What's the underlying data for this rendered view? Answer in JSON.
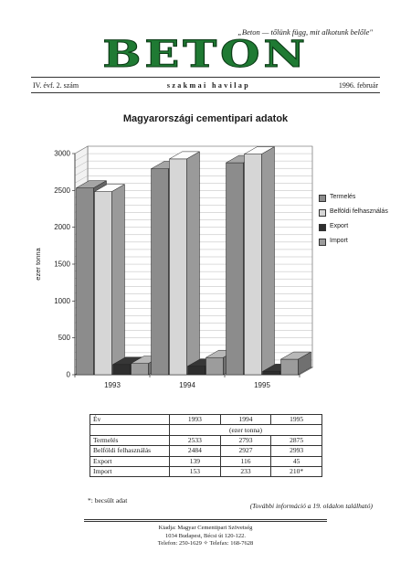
{
  "header": {
    "motto": "„Beton — tőlünk függ, mit alkotunk belőle\"",
    "title": "BETON",
    "issue": "IV. évf. 2. szám",
    "subtitle": "szakmai havilap",
    "date": "1996. február"
  },
  "chart_data": {
    "type": "bar",
    "title": "Magyarországi cementipari adatok",
    "ylabel": "ezer tonna",
    "xlabel": "",
    "categories": [
      "1993",
      "1994",
      "1995"
    ],
    "ylim": [
      0,
      3000
    ],
    "yticks": [
      "0",
      "500",
      "1000",
      "1500",
      "2000",
      "2500",
      "3000"
    ],
    "grid": true,
    "legend_position": "right",
    "series": [
      {
        "name": "Termelés",
        "values": [
          2533,
          2793,
          2875
        ],
        "color": "#8c8c8c"
      },
      {
        "name": "Belföldi felhasználás",
        "values": [
          2484,
          2927,
          2993
        ],
        "color": "#d6d6d6"
      },
      {
        "name": "Export",
        "values": [
          139,
          116,
          45
        ],
        "color": "#2e2e2e"
      },
      {
        "name": "Import",
        "values": [
          153,
          233,
          210
        ],
        "color": "#9c9c9c"
      }
    ]
  },
  "table": {
    "header": [
      "Év",
      "1993",
      "1994",
      "1995"
    ],
    "unit": "(ezer tonna)",
    "rows": [
      [
        "Termelés",
        "2533",
        "2793",
        "2875"
      ],
      [
        "Belföldi felhasználás",
        "2484",
        "2927",
        "2993"
      ],
      [
        "Export",
        "139",
        "116",
        "45"
      ],
      [
        "Import",
        "153",
        "233",
        "210*"
      ]
    ]
  },
  "footnote": "*: becsült adat",
  "more_info": "(További információ a 19. oldalon található)",
  "publisher": {
    "line1": "Kiadja: Magyar Cementipari Szövetség",
    "line2": "1034 Budapest, Bécsi út 120-122.",
    "line3": "Telefon: 250-1629   ✧   Telefax: 168-7628"
  }
}
